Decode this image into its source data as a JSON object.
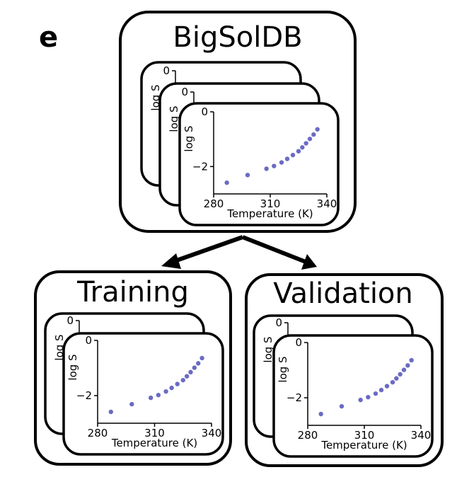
{
  "panel_label": "e",
  "groups": {
    "source": {
      "title": "BigSolDB"
    },
    "training": {
      "title": "Training"
    },
    "validation": {
      "title": "Validation"
    }
  },
  "colors": {
    "stroke": "#000000",
    "marker": "#6b6bc4",
    "background": "#ffffff"
  },
  "chart_data": {
    "type": "scatter",
    "xlabel": "Temperature (K)",
    "ylabel": "log S",
    "xlim": [
      280,
      340
    ],
    "ylim": [
      -3,
      0
    ],
    "xticks": [
      280,
      310,
      340
    ],
    "yticks": [
      0,
      -2
    ],
    "x": [
      287,
      298,
      308,
      312,
      316,
      319,
      322,
      325,
      327,
      329,
      331,
      333,
      335
    ],
    "y": [
      -2.59,
      -2.31,
      -2.08,
      -1.98,
      -1.85,
      -1.72,
      -1.58,
      -1.44,
      -1.3,
      -1.15,
      -0.99,
      -0.83,
      -0.64
    ]
  }
}
